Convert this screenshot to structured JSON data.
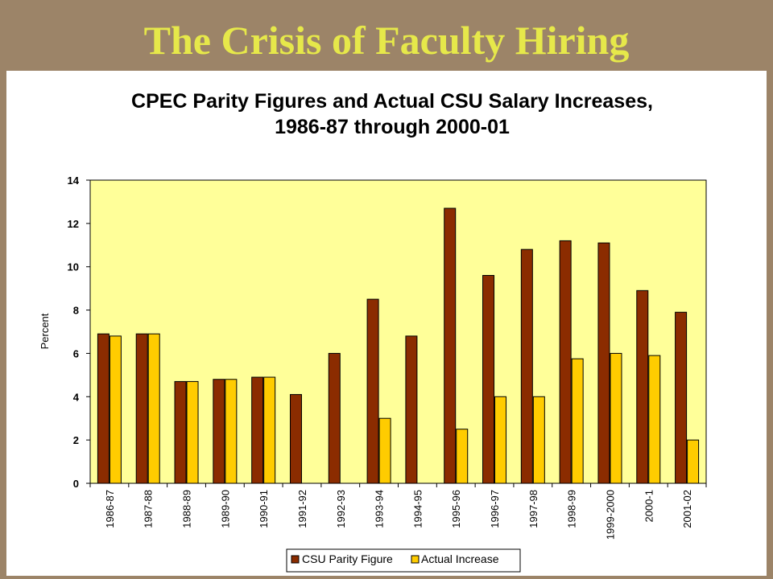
{
  "slide": {
    "title": "The Crisis of Faculty Hiring"
  },
  "colors": {
    "parity": "#8b2c00",
    "actual": "#ffcc00",
    "plot_bg": "#ffff99"
  },
  "chart_data": {
    "type": "bar",
    "title_lines": [
      "CPEC Parity Figures and Actual CSU Salary Increases,",
      "1986-87 through 2000-01"
    ],
    "ylabel": "Percent",
    "xlabel": "",
    "ylim": [
      0,
      14
    ],
    "yticks": [
      0,
      2,
      4,
      6,
      8,
      10,
      12,
      14
    ],
    "grid": false,
    "legend_position": "bottom-center",
    "categories": [
      "1986-87",
      "1987-88",
      "1988-89",
      "1989-90",
      "1990-91",
      "1991-92",
      "1992-93",
      "1993-94",
      "1994-95",
      "1995-96",
      "1996-97",
      "1997-98",
      "1998-99",
      "1999-2000",
      "2000-1",
      "2001-02"
    ],
    "series": [
      {
        "name": "CSU Parity Figure",
        "values": [
          6.9,
          6.9,
          4.7,
          4.8,
          4.9,
          4.1,
          6.0,
          8.5,
          6.8,
          12.7,
          9.6,
          10.8,
          11.2,
          11.1,
          8.9,
          7.9
        ]
      },
      {
        "name": "Actual Increase",
        "values": [
          6.8,
          6.9,
          4.7,
          4.8,
          4.9,
          0,
          0,
          3.0,
          0,
          2.5,
          4.0,
          4.0,
          5.75,
          6.0,
          5.9,
          2.0
        ]
      }
    ]
  }
}
